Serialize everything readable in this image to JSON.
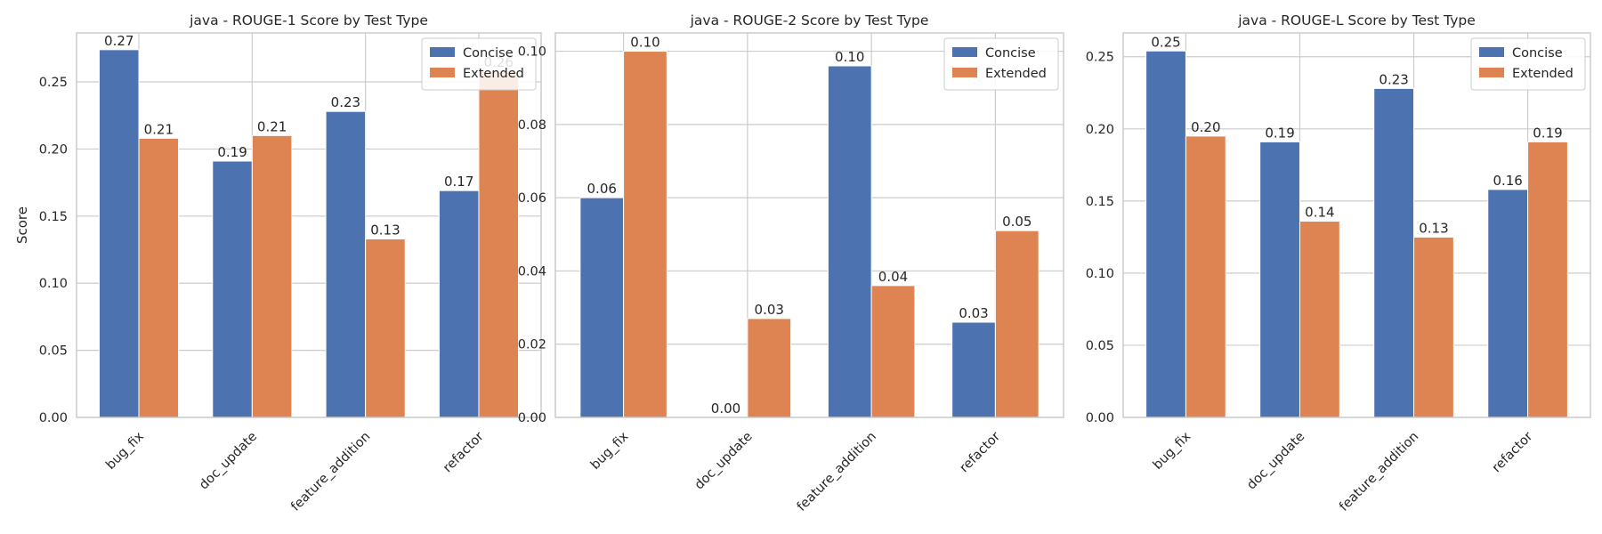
{
  "colors": {
    "concise": "#4c72b0",
    "extended": "#dd8452",
    "grid": "#cccccc",
    "axis_text": "#262626"
  },
  "legend": {
    "placement": "upper-right"
  },
  "chart_data": [
    {
      "type": "bar",
      "title": "java - ROUGE-1 Score by Test Type",
      "xlabel": "",
      "ylabel": "Score",
      "categories": [
        "bug_fix",
        "doc_update",
        "feature_addition",
        "refactor"
      ],
      "series": [
        {
          "name": "Concise",
          "values": [
            0.274,
            0.191,
            0.228,
            0.169
          ],
          "labels": [
            "0.27",
            "0.19",
            "0.23",
            "0.17"
          ]
        },
        {
          "name": "Extended",
          "values": [
            0.208,
            0.21,
            0.133,
            0.258
          ],
          "labels": [
            "0.21",
            "0.21",
            "0.13",
            "0.26"
          ]
        }
      ],
      "ylim": [
        0,
        0.2865
      ],
      "yticks": [
        0.0,
        0.05,
        0.1,
        0.15,
        0.2,
        0.25
      ],
      "ytick_labels": [
        "0.00",
        "0.05",
        "0.10",
        "0.15",
        "0.20",
        "0.25"
      ],
      "grid": true
    },
    {
      "type": "bar",
      "title": "java - ROUGE-2 Score by Test Type",
      "xlabel": "",
      "ylabel": "",
      "categories": [
        "bug_fix",
        "doc_update",
        "feature_addition",
        "refactor"
      ],
      "series": [
        {
          "name": "Concise",
          "values": [
            0.06,
            0.0,
            0.096,
            0.026
          ],
          "labels": [
            "0.06",
            "0.00",
            "0.10",
            "0.03"
          ]
        },
        {
          "name": "Extended",
          "values": [
            0.1,
            0.027,
            0.036,
            0.051
          ],
          "labels": [
            "0.10",
            "0.03",
            "0.04",
            "0.05"
          ]
        }
      ],
      "ylim": [
        0,
        0.105
      ],
      "yticks": [
        0.0,
        0.02,
        0.04,
        0.06,
        0.08,
        0.1
      ],
      "ytick_labels": [
        "0.00",
        "0.02",
        "0.04",
        "0.06",
        "0.08",
        "0.10"
      ],
      "grid": true
    },
    {
      "type": "bar",
      "title": "java - ROUGE-L Score by Test Type",
      "xlabel": "",
      "ylabel": "",
      "categories": [
        "bug_fix",
        "doc_update",
        "feature_addition",
        "refactor"
      ],
      "series": [
        {
          "name": "Concise",
          "values": [
            0.254,
            0.191,
            0.228,
            0.158
          ],
          "labels": [
            "0.25",
            "0.19",
            "0.23",
            "0.16"
          ]
        },
        {
          "name": "Extended",
          "values": [
            0.195,
            0.136,
            0.125,
            0.191
          ],
          "labels": [
            "0.20",
            "0.14",
            "0.13",
            "0.19"
          ]
        }
      ],
      "ylim": [
        0,
        0.2665
      ],
      "yticks": [
        0.0,
        0.05,
        0.1,
        0.15,
        0.2,
        0.25
      ],
      "ytick_labels": [
        "0.00",
        "0.05",
        "0.10",
        "0.15",
        "0.20",
        "0.25"
      ],
      "grid": true
    }
  ]
}
